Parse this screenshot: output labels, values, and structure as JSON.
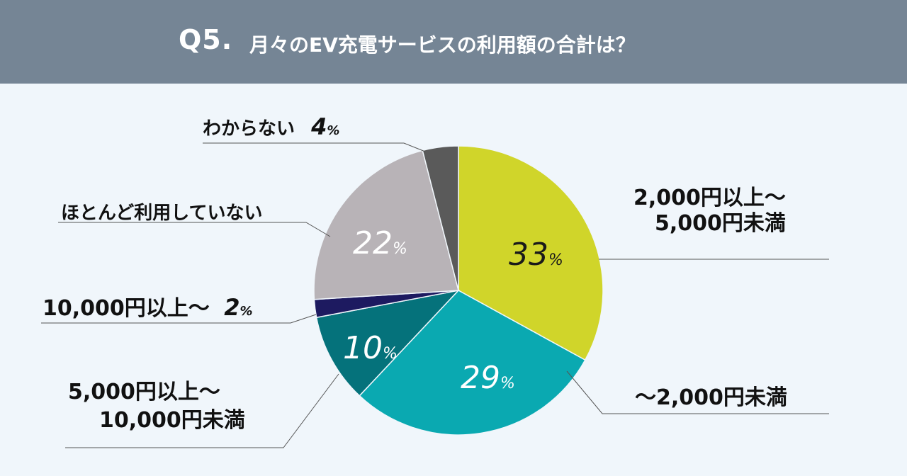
{
  "header": {
    "prefix": "Q5.",
    "title": "月々のEV充電サービスの利用額の合計は？"
  },
  "chart_data": {
    "type": "pie",
    "title": "月々のEV充電サービスの利用額の合計は？",
    "unit": "%",
    "slices": [
      {
        "key": "s2000_5000",
        "label_lines": [
          "2,000円以上～",
          "5,000円未満"
        ],
        "value": 33,
        "color": "#d0d52a"
      },
      {
        "key": "under2000",
        "label_lines": [
          "～2,000円未満"
        ],
        "value": 29,
        "color": "#0aa9b1"
      },
      {
        "key": "s5000_10000",
        "label_lines": [
          "5,000円以上～",
          "10,000円未満"
        ],
        "value": 10,
        "color": "#05727b"
      },
      {
        "key": "over10000",
        "label_lines": [
          "10,000円以上～"
        ],
        "value": 2,
        "color": "#1d1a60"
      },
      {
        "key": "hardly",
        "label_lines": [
          "ほとんど利用していない"
        ],
        "value": 22,
        "color": "#b8b3b7"
      },
      {
        "key": "unknown",
        "label_lines": [
          "わからない"
        ],
        "value": 4,
        "color": "#5a5a5a"
      }
    ]
  },
  "ui": {
    "pct_sign": "%"
  }
}
